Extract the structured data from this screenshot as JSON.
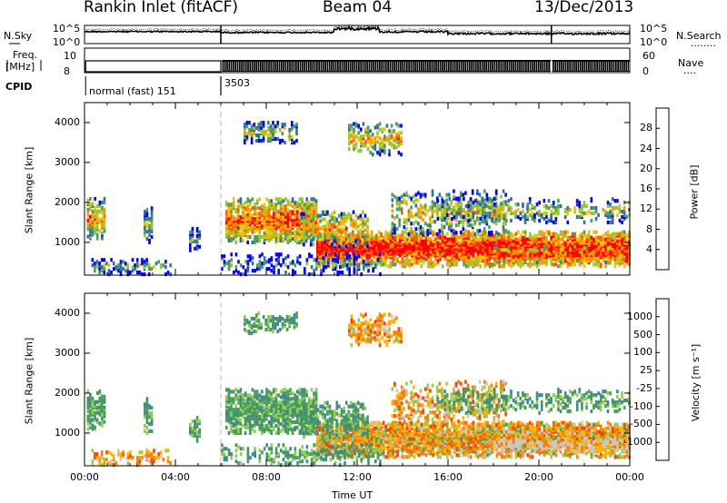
{
  "header": {
    "station": "Rankin Inlet (fitACF)",
    "beam": "Beam 04",
    "date": "13/Dec/2013"
  },
  "panels": {
    "nsky_label": "N.Sky",
    "nsearch_label": "N.Search",
    "nsearch_line": "........",
    "freq_label_top": "Freq.",
    "freq_label_unit": "[MHz]",
    "nave_label": "Nave",
    "nave_line": "....",
    "cpid_label": "CPID",
    "cpid_segments": [
      {
        "start_hour": 0.0,
        "label": "normal (fast) 151"
      },
      {
        "start_hour": 6.0,
        "label": "3503"
      }
    ],
    "nsky_ticks": [
      "10^5",
      "10^0"
    ],
    "freq_ticks": [
      "10",
      "8"
    ],
    "nave_ticks": [
      "60",
      "0"
    ]
  },
  "chart_data": [
    {
      "type": "heatmap",
      "name": "power",
      "ylabel": "Slant Range [km]",
      "yticks": [
        "4000",
        "3000",
        "2000",
        "1000"
      ],
      "colorbar": {
        "label": "Power [dB]",
        "ticks": [
          "28",
          "24",
          "20",
          "16",
          "12",
          "8",
          "4"
        ],
        "colors": [
          "#ff0000",
          "#ff5a00",
          "#ff9a00",
          "#e8c800",
          "#93c63a",
          "#4f9c5c",
          "#2e6fa6",
          "#0000ff"
        ]
      }
    },
    {
      "type": "heatmap",
      "name": "velocity",
      "ylabel": "Slant Range [km]",
      "yticks": [
        "4000",
        "3000",
        "2000",
        "1000"
      ],
      "colorbar": {
        "label": "Velocity [m s⁻¹]",
        "ticks": [
          "1000",
          "500",
          "100",
          "25",
          "-25",
          "-100",
          "-500",
          "-1000"
        ],
        "colors": [
          "#2040c0",
          "#3d8a8c",
          "#4a9a5a",
          "#8fd04f",
          "#c8c8c8",
          "#ffb400",
          "#ff7e00",
          "#ff4000",
          "#ff0000"
        ]
      }
    }
  ],
  "xaxis": {
    "label": "Time UT",
    "ticks": [
      "00:00",
      "04:00",
      "08:00",
      "12:00",
      "16:00",
      "20:00",
      "00:00"
    ]
  }
}
